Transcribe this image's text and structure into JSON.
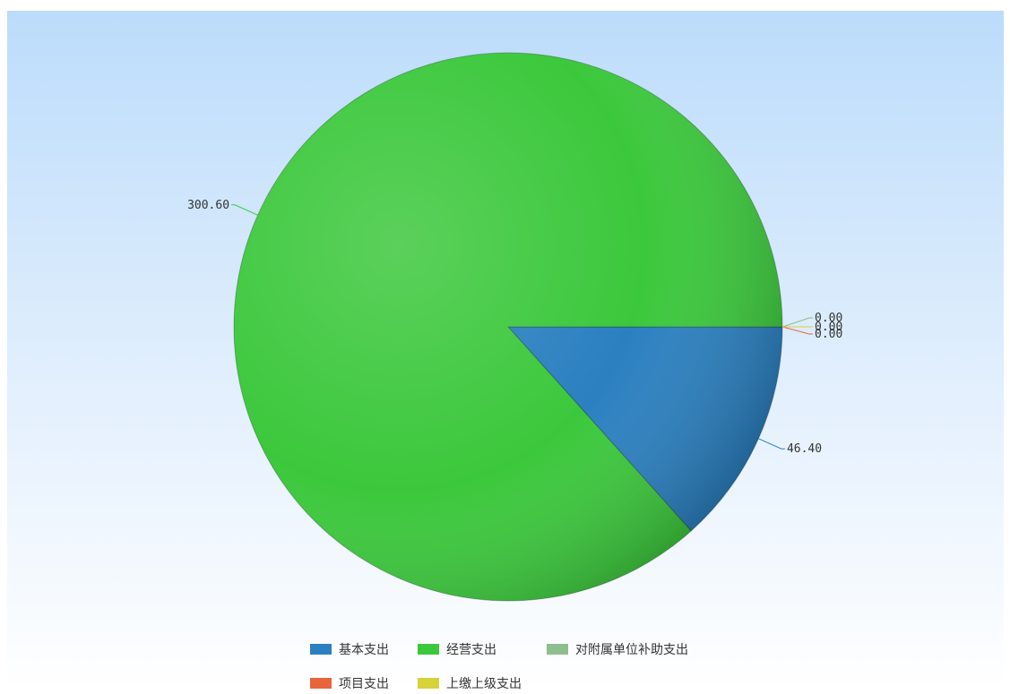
{
  "chart_data": {
    "type": "pie",
    "title": "",
    "slices": [
      {
        "name": "基本支出",
        "value": 46.4,
        "label": "46.40",
        "color": "#2b80c0"
      },
      {
        "name": "经营支出",
        "value": 300.6,
        "label": "300.60",
        "color": "#3cc83c"
      },
      {
        "name": "对附属单位补助支出",
        "value": 0.0,
        "label": "0.00",
        "color": "#8fbf8f"
      },
      {
        "name": "项目支出",
        "value": 0.0,
        "label": "0.00",
        "color": "#e8643c"
      },
      {
        "name": "上缴上级支出",
        "value": 0.0,
        "label": "0.00",
        "color": "#d6d23a"
      }
    ],
    "legend": {
      "placement": "bottom",
      "items": [
        "基本支出",
        "经营支出",
        "对附属单位补助支出",
        "项目支出",
        "上缴上级支出"
      ]
    }
  }
}
